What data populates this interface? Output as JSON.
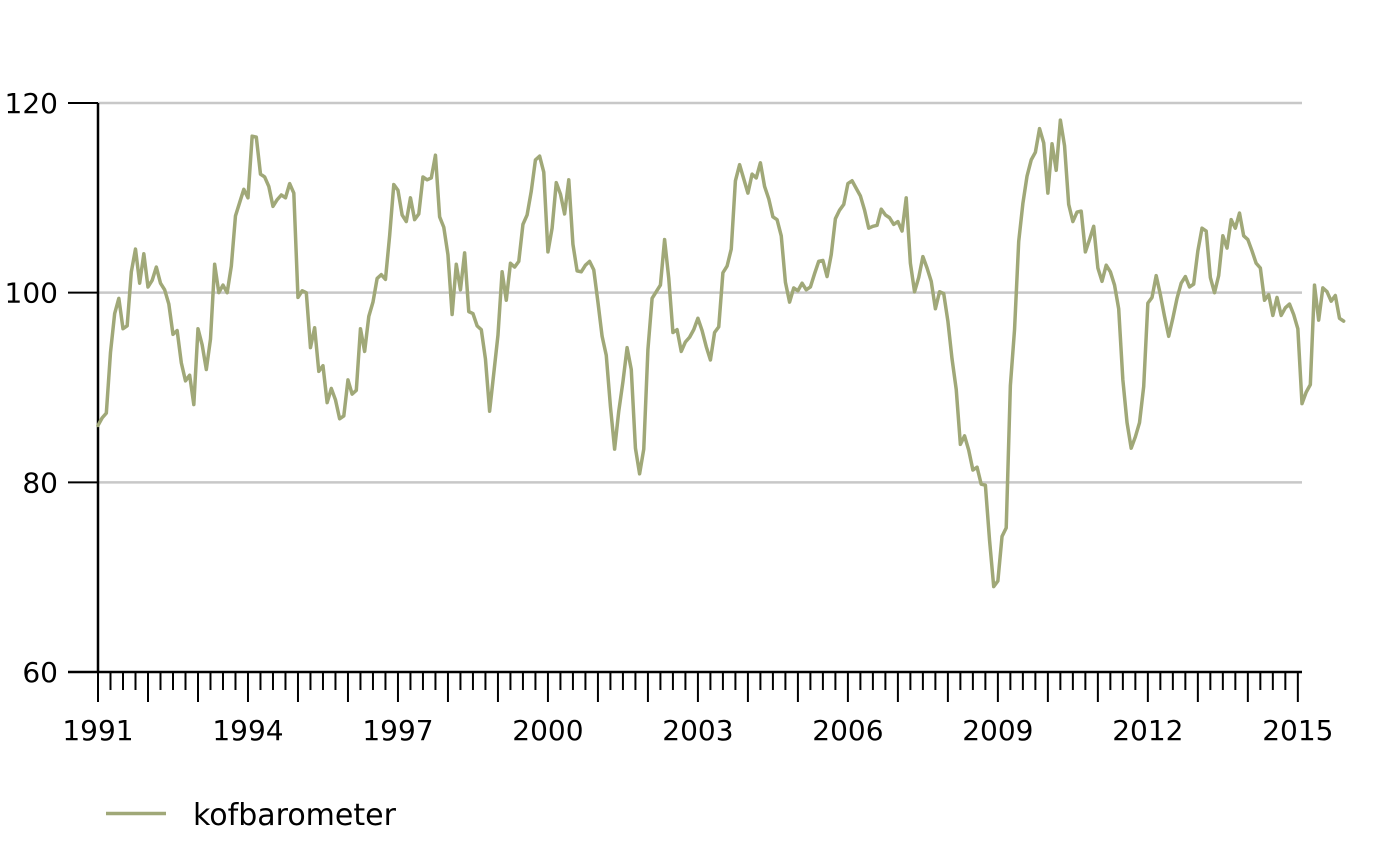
{
  "chart_data": {
    "type": "line",
    "title": "",
    "xlabel": "",
    "ylabel": "",
    "xlim": [
      1991.0,
      2015.0833
    ],
    "ylim": [
      60,
      120
    ],
    "y_ticks": [
      60,
      80,
      100,
      120
    ],
    "x_major_ticks": [
      1991,
      1992,
      1993,
      1994,
      1995,
      1996,
      1997,
      1998,
      1999,
      2000,
      2001,
      2002,
      2003,
      2004,
      2005,
      2006,
      2007,
      2008,
      2009,
      2010,
      2011,
      2012,
      2013,
      2014,
      2015
    ],
    "x_tick_labels": [
      {
        "year": 1991,
        "label": "1991"
      },
      {
        "year": 1994,
        "label": "1994"
      },
      {
        "year": 1997,
        "label": "1997"
      },
      {
        "year": 2000,
        "label": "2000"
      },
      {
        "year": 2003,
        "label": "2003"
      },
      {
        "year": 2006,
        "label": "2006"
      },
      {
        "year": 2009,
        "label": "2009"
      },
      {
        "year": 2012,
        "label": "2012"
      },
      {
        "year": 2015,
        "label": "2015"
      }
    ],
    "grid": "horizontal",
    "legend_position": "bottom-left",
    "series": [
      {
        "name": "kofbarometer",
        "color": "#a0a878",
        "frequency": "monthly",
        "start": "1991-01",
        "values": [
          86.0,
          86.8,
          87.3,
          93.7,
          97.8,
          99.4,
          96.2,
          96.5,
          102.2,
          104.6,
          101.0,
          104.1,
          100.6,
          101.3,
          102.7,
          101.0,
          100.3,
          98.8,
          95.6,
          96.0,
          92.6,
          90.7,
          91.3,
          88.2,
          96.2,
          94.5,
          91.9,
          95.1,
          103.0,
          100.0,
          100.8,
          100.0,
          102.8,
          108.1,
          109.5,
          110.9,
          110.0,
          116.5,
          116.4,
          112.5,
          112.2,
          111.2,
          109.1,
          109.8,
          110.3,
          110.0,
          111.5,
          110.5,
          99.5,
          100.2,
          100.0,
          94.2,
          96.3,
          91.7,
          92.3,
          88.4,
          89.9,
          88.7,
          86.7,
          87.0,
          90.8,
          89.3,
          89.7,
          96.2,
          93.8,
          97.5,
          99.0,
          101.5,
          101.9,
          101.4,
          106.0,
          111.4,
          110.8,
          108.2,
          107.5,
          110.0,
          107.7,
          108.3,
          112.2,
          111.9,
          112.1,
          114.5,
          108.0,
          106.9,
          104.0,
          97.7,
          103.0,
          100.3,
          104.2,
          98.0,
          97.8,
          96.5,
          96.1,
          93.0,
          87.5,
          91.5,
          95.5,
          102.2,
          99.2,
          103.1,
          102.7,
          103.3,
          107.2,
          108.2,
          110.7,
          114.0,
          114.4,
          112.7,
          104.3,
          106.8,
          111.6,
          110.4,
          108.3,
          111.9,
          105.1,
          102.3,
          102.2,
          102.9,
          103.3,
          102.4,
          99.0,
          95.4,
          93.4,
          88.0,
          83.5,
          87.5,
          90.6,
          94.2,
          91.9,
          83.6,
          80.9,
          83.5,
          94.0,
          99.4,
          100.1,
          100.8,
          105.6,
          101.5,
          95.8,
          96.1,
          93.8,
          94.8,
          95.3,
          96.1,
          97.3,
          96.0,
          94.3,
          92.9,
          95.8,
          96.4,
          102.1,
          102.8,
          104.6,
          111.8,
          113.5,
          112.0,
          110.5,
          112.5,
          112.1,
          113.7,
          111.2,
          109.9,
          108.0,
          107.7,
          106.0,
          101.1,
          99.0,
          100.5,
          100.2,
          101.0,
          100.3,
          100.6,
          102.0,
          103.3,
          103.4,
          101.7,
          104.0,
          107.8,
          108.7,
          109.3,
          111.5,
          111.8,
          111.0,
          110.2,
          108.7,
          106.8,
          107.0,
          107.1,
          108.8,
          108.2,
          107.9,
          107.2,
          107.5,
          106.5,
          110.0,
          103.1,
          100.1,
          101.6,
          103.8,
          102.6,
          101.2,
          98.3,
          100.1,
          99.9,
          97.0,
          93.0,
          89.8,
          84.0,
          84.9,
          83.4,
          81.3,
          81.6,
          79.8,
          79.7,
          73.9,
          69.0,
          69.6,
          74.3,
          75.2,
          90.2,
          96.1,
          105.4,
          109.4,
          112.3,
          114.0,
          114.8,
          117.3,
          115.8,
          110.5,
          115.7,
          112.9,
          118.2,
          115.5,
          109.3,
          107.5,
          108.5,
          108.6,
          104.3,
          105.6,
          107.0,
          102.6,
          101.2,
          102.9,
          102.2,
          100.8,
          98.3,
          90.8,
          86.3,
          83.6,
          84.8,
          86.3,
          90.1,
          98.9,
          99.5,
          101.8,
          99.8,
          97.5,
          95.4,
          97.3,
          99.4,
          101.0,
          101.7,
          100.6,
          100.9,
          104.4,
          106.8,
          106.5,
          101.6,
          100.0,
          101.8,
          106.0,
          104.7,
          107.7,
          106.8,
          108.4,
          106.0,
          105.6,
          104.4,
          103.1,
          102.6,
          99.2,
          99.8,
          97.6,
          99.5,
          97.6,
          98.4,
          98.8,
          97.7,
          96.2,
          88.3,
          89.5,
          90.3,
          100.8,
          97.1,
          100.5,
          100.1,
          99.1,
          99.7,
          97.3,
          97.0
        ]
      }
    ]
  }
}
